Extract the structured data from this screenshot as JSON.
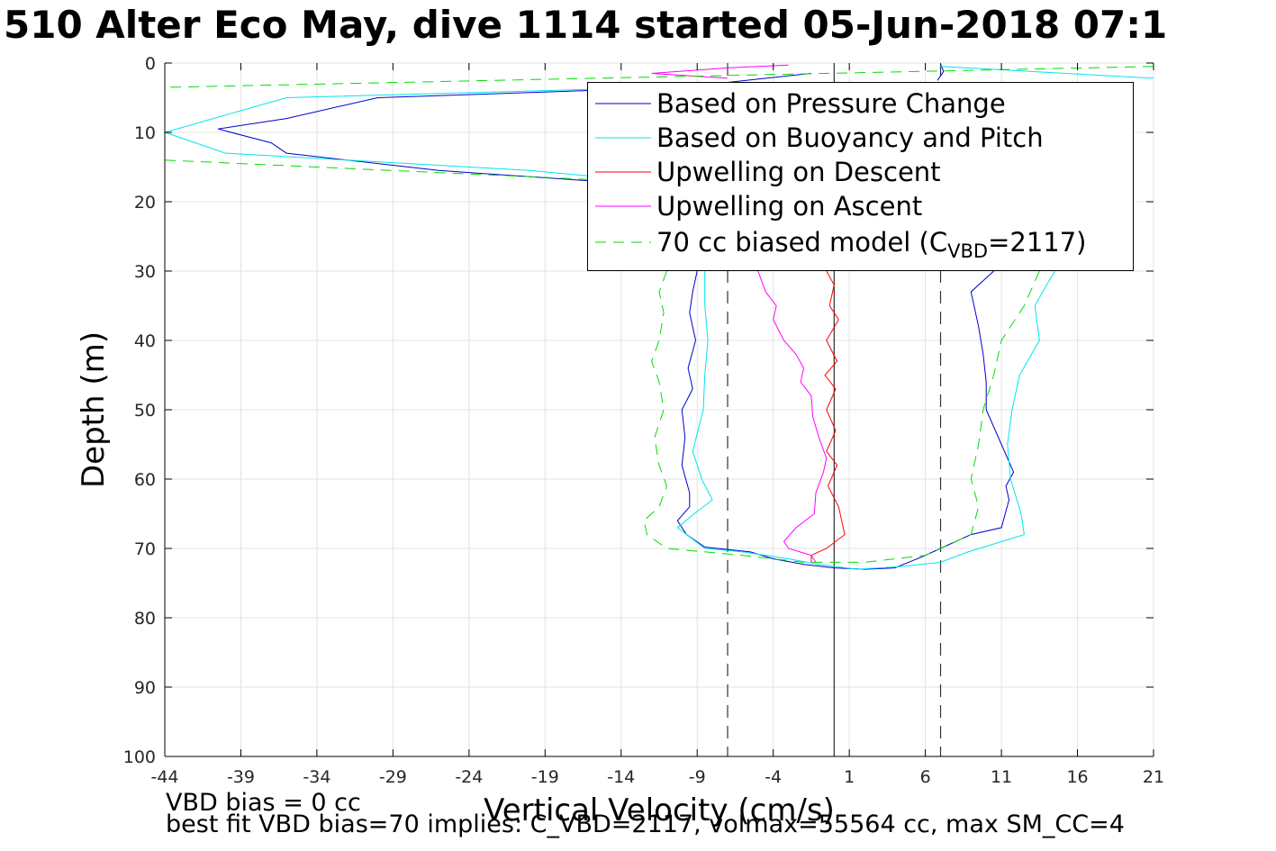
{
  "title": "510 Alter Eco May, dive 1114 started 05-Jun-2018 07:1",
  "xlabel": "Vertical Velocity (cm/s)",
  "ylabel": "Depth (m)",
  "notes": {
    "line1": "VBD bias = 0 cc",
    "line2": "best fit VBD bias=70 implies: C_VBD=2117, volmax=55564 cc, max SM_CC=4"
  },
  "legend": {
    "item0": "Based on Pressure Change",
    "item1": "Based on Buoyancy and Pitch",
    "item2": "Upwelling on Descent",
    "item3": "Upwelling on Ascent",
    "item4_pre": "70 cc biased model (C",
    "item4_sub": "VBD",
    "item4_post": "=2117)"
  },
  "chart_data": {
    "type": "line",
    "xlabel": "Vertical Velocity (cm/s)",
    "ylabel": "Depth (m)",
    "xlim": [
      -44,
      21
    ],
    "ylim": [
      0,
      100
    ],
    "y_reversed": true,
    "grid": true,
    "legend_position": "top-right",
    "x_ticks": [
      -44,
      -39,
      -34,
      -29,
      -24,
      -19,
      -14,
      -9,
      -4,
      1,
      6,
      11,
      16,
      21
    ],
    "y_ticks": [
      0,
      10,
      20,
      30,
      40,
      50,
      60,
      70,
      80,
      90,
      100
    ],
    "reference_lines": {
      "solid_x": 0,
      "dashed_x": [
        -7,
        7
      ]
    },
    "series": [
      {
        "name": "Based on Pressure Change",
        "color": "#0000cd",
        "style": "solid",
        "points": [
          [
            -1.5,
            1.5
          ],
          [
            -10,
            3.5
          ],
          [
            -30,
            5
          ],
          [
            -36,
            8
          ],
          [
            -40.5,
            9.5
          ],
          [
            -37,
            11.5
          ],
          [
            -36,
            13
          ],
          [
            -26,
            15.5
          ],
          [
            -16,
            17
          ],
          [
            -14,
            17.5
          ]
        ],
        "points2": [
          [
            -9,
            30
          ],
          [
            -9.3,
            33
          ],
          [
            -9.5,
            36
          ],
          [
            -9.1,
            40
          ],
          [
            -9.6,
            44
          ],
          [
            -9.3,
            47
          ],
          [
            -10,
            50
          ],
          [
            -9.8,
            54
          ],
          [
            -10,
            58
          ],
          [
            -9.5,
            62
          ],
          [
            -9.5,
            64
          ],
          [
            -10.3,
            66
          ],
          [
            -9.7,
            68
          ],
          [
            -8.5,
            69.8
          ],
          [
            -5.5,
            70.5
          ],
          [
            -4,
            71.5
          ],
          [
            -2,
            72.3
          ],
          [
            0,
            72.8
          ],
          [
            2,
            73
          ],
          [
            4,
            72.8
          ],
          [
            5.8,
            71.2
          ],
          [
            7,
            70
          ],
          [
            9,
            68
          ],
          [
            11,
            67
          ],
          [
            11.5,
            63
          ],
          [
            11.3,
            61
          ],
          [
            11.8,
            59
          ],
          [
            11,
            55
          ],
          [
            10,
            50
          ],
          [
            10,
            46
          ],
          [
            9.8,
            42
          ],
          [
            9.5,
            38
          ],
          [
            9,
            33
          ],
          [
            10.5,
            30
          ]
        ],
        "points3": [
          [
            7,
            0.2
          ],
          [
            7.2,
            1.2
          ],
          [
            6.8,
            2.5
          ]
        ]
      },
      {
        "name": "Based on Buoyancy and Pitch",
        "color": "#00e5ee",
        "style": "solid",
        "points": [
          [
            -3,
            3
          ],
          [
            -36,
            5
          ],
          [
            -44,
            10
          ],
          [
            -40,
            13
          ],
          [
            -20,
            15.5
          ],
          [
            -15,
            16.5
          ]
        ],
        "points2": [
          [
            -8.5,
            30
          ],
          [
            -8.5,
            35
          ],
          [
            -8.3,
            40
          ],
          [
            -8.5,
            45
          ],
          [
            -8.6,
            50
          ],
          [
            -9.3,
            56
          ],
          [
            -8.7,
            60
          ],
          [
            -8,
            63
          ],
          [
            -9.2,
            65
          ],
          [
            -10.3,
            67
          ],
          [
            -8.5,
            70
          ],
          [
            -6,
            70.5
          ],
          [
            -3,
            71.5
          ],
          [
            -1,
            72.3
          ],
          [
            1.5,
            73
          ],
          [
            4.5,
            72.6
          ],
          [
            7,
            72
          ],
          [
            8.8,
            70.5
          ],
          [
            12.5,
            68
          ],
          [
            12.3,
            65
          ],
          [
            11.6,
            60
          ],
          [
            11.4,
            55
          ],
          [
            11.7,
            50
          ],
          [
            12.2,
            45
          ],
          [
            13.5,
            40
          ],
          [
            13.2,
            35
          ],
          [
            14.5,
            30
          ]
        ],
        "points3": [
          [
            7,
            0.5
          ],
          [
            21,
            2.2
          ]
        ]
      },
      {
        "name": "Upwelling on Descent",
        "color": "#ff0000",
        "style": "solid",
        "points": [
          [
            -0.5,
            30
          ],
          [
            0,
            32
          ],
          [
            -0.3,
            35
          ],
          [
            0.3,
            37
          ],
          [
            -0.5,
            40
          ],
          [
            0.2,
            43
          ],
          [
            -0.6,
            45
          ],
          [
            0.1,
            47
          ],
          [
            -0.5,
            50
          ],
          [
            0.1,
            53
          ],
          [
            -0.5,
            56
          ],
          [
            0.2,
            58
          ],
          [
            -0.4,
            61
          ],
          [
            0.3,
            64
          ],
          [
            0.5,
            66
          ],
          [
            0.7,
            68
          ],
          [
            -0.5,
            70
          ],
          [
            -1.5,
            71
          ],
          [
            -1.5,
            72
          ]
        ]
      },
      {
        "name": "Upwelling on Ascent",
        "color": "#ff00ff",
        "style": "solid",
        "points": [
          [
            -3,
            0.3
          ],
          [
            -7,
            0.7
          ],
          [
            -12,
            1.5
          ],
          [
            -7,
            2.2
          ]
        ],
        "points2": [
          [
            -5,
            30
          ],
          [
            -4.5,
            33
          ],
          [
            -3.8,
            35
          ],
          [
            -4,
            37
          ],
          [
            -3.3,
            40
          ],
          [
            -2.5,
            42
          ],
          [
            -2,
            44
          ],
          [
            -2.2,
            46
          ],
          [
            -1.5,
            48
          ],
          [
            -1.4,
            51
          ],
          [
            -1,
            54
          ],
          [
            -0.5,
            57
          ],
          [
            -0.7,
            59
          ],
          [
            -1.2,
            62
          ],
          [
            -1.3,
            65
          ],
          [
            -2.5,
            67
          ],
          [
            -3.3,
            69
          ],
          [
            -3,
            70
          ],
          [
            -1.5,
            71
          ],
          [
            -1.2,
            72
          ]
        ]
      },
      {
        "name": "70 cc biased model (C_VBD=2117)",
        "color": "#00dd00",
        "style": "dashed",
        "points": [
          [
            21,
            0.5
          ],
          [
            -44,
            3.5
          ]
        ],
        "points2": [
          [
            -44,
            14
          ],
          [
            -14,
            17
          ]
        ],
        "points3": [
          [
            -11,
            30
          ],
          [
            -11.5,
            33
          ],
          [
            -11.2,
            36
          ],
          [
            -11.5,
            40
          ],
          [
            -12,
            43
          ],
          [
            -11.5,
            46
          ],
          [
            -11.2,
            50
          ],
          [
            -11.8,
            54
          ],
          [
            -11.5,
            58
          ],
          [
            -11,
            61
          ],
          [
            -11.5,
            64
          ],
          [
            -12.5,
            66
          ],
          [
            -12.3,
            68
          ],
          [
            -11,
            70
          ],
          [
            -6,
            71
          ],
          [
            -2,
            72
          ],
          [
            2,
            72
          ],
          [
            6,
            71
          ],
          [
            9,
            68
          ],
          [
            9.5,
            64
          ],
          [
            9,
            60
          ],
          [
            9.5,
            55
          ],
          [
            9.8,
            50
          ],
          [
            10.5,
            45
          ],
          [
            11,
            40
          ],
          [
            12.5,
            35
          ],
          [
            13.5,
            30
          ]
        ]
      }
    ]
  }
}
